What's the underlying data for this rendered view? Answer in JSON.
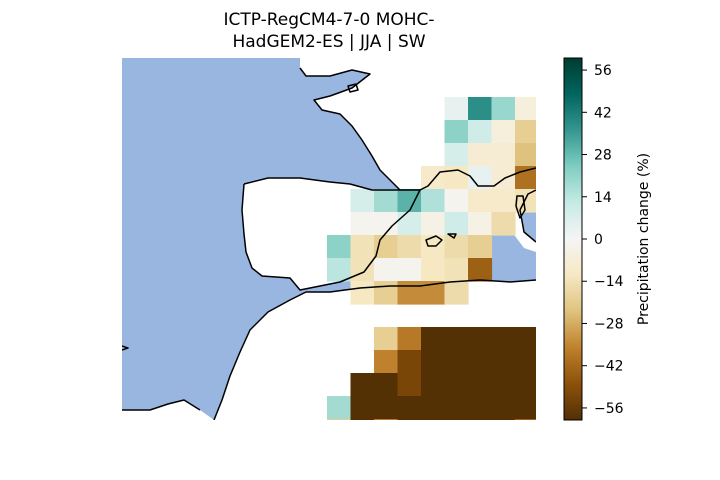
{
  "title": {
    "line1": "ICTP-RegCM4-7-0 MOHC-",
    "line2": "HadGEM2-ES | JJA | SW"
  },
  "colorbar": {
    "label": "Precipitation change (%)",
    "ticks": [
      "56",
      "42",
      "28",
      "14",
      "0",
      "−14",
      "−28",
      "−42",
      "−56"
    ],
    "tick_values": [
      56,
      42,
      28,
      14,
      0,
      -14,
      -28,
      -42,
      -56
    ],
    "range": [
      -60,
      60
    ],
    "colormap": "BrBG"
  },
  "colors": {
    "ocean": "#99b6e1",
    "coastline": "#000000",
    "land_no_data": "#ffffff"
  },
  "chart_data": {
    "type": "heatmap",
    "title": "ICTP-RegCM4-7-0 MOHC-HadGEM2-ES | JJA | SW",
    "colorbar_label": "Precipitation change (%)",
    "value_range": [
      -60,
      60
    ],
    "grid_note": "values in % precipitation change; rows north to south, columns west to east; null = no land cell",
    "values": [
      [
        null,
        null,
        null,
        null,
        null,
        null,
        null,
        null,
        null,
        null,
        null,
        null,
        null,
        null,
        -8,
        6,
        null,
        null
      ],
      [
        null,
        null,
        null,
        null,
        null,
        null,
        null,
        null,
        null,
        4,
        38,
        20,
        -6,
        -6,
        null,
        null,
        null,
        null
      ],
      [
        null,
        null,
        null,
        null,
        null,
        null,
        null,
        null,
        null,
        22,
        10,
        -6,
        -20,
        -14,
        null,
        null,
        null,
        null
      ],
      [
        null,
        null,
        null,
        null,
        null,
        null,
        null,
        null,
        null,
        8,
        -8,
        -8,
        -24,
        -8,
        null,
        null,
        null,
        null
      ],
      [
        null,
        null,
        null,
        null,
        null,
        null,
        null,
        null,
        -10,
        -12,
        4,
        -8,
        -40,
        -4,
        null,
        null,
        null,
        null
      ],
      [
        null,
        null,
        null,
        null,
        null,
        8,
        18,
        30,
        16,
        -2,
        -10,
        -10,
        -14,
        null,
        null,
        null,
        null,
        null
      ],
      [
        null,
        null,
        null,
        null,
        null,
        -2,
        -2,
        8,
        -4,
        10,
        -4,
        -16,
        null,
        null,
        null,
        null,
        null,
        null
      ],
      [
        null,
        null,
        null,
        null,
        22,
        -14,
        -20,
        -16,
        -12,
        -16,
        -20,
        null,
        null,
        null,
        null,
        null,
        null,
        null
      ],
      [
        null,
        null,
        null,
        null,
        14,
        -14,
        -2,
        -2,
        -12,
        -14,
        -44,
        null,
        null,
        null,
        null,
        null,
        null,
        null
      ],
      [
        null,
        null,
        null,
        null,
        null,
        -12,
        -20,
        -34,
        -34,
        -16,
        null,
        null,
        null,
        null,
        null,
        null,
        null,
        null
      ],
      [
        null,
        null,
        null,
        null,
        null,
        null,
        null,
        null,
        null,
        null,
        null,
        null,
        null,
        null,
        null,
        null,
        null,
        null
      ],
      [
        null,
        null,
        null,
        null,
        null,
        null,
        -20,
        -38,
        -60,
        -60,
        -60,
        -60,
        -60,
        -60,
        -48,
        -24,
        null,
        null
      ],
      [
        null,
        null,
        null,
        null,
        null,
        null,
        -36,
        -52,
        -60,
        -60,
        -60,
        -60,
        -60,
        -60,
        -28,
        -8,
        null,
        null
      ],
      [
        null,
        null,
        null,
        null,
        null,
        -60,
        -60,
        -52,
        -60,
        -60,
        -60,
        -60,
        -60,
        -60,
        -60,
        -44,
        null,
        null
      ],
      [
        null,
        null,
        null,
        null,
        18,
        -60,
        -60,
        -60,
        -60,
        -60,
        -60,
        -60,
        -60,
        null,
        null,
        null,
        null,
        null
      ],
      [
        null,
        null,
        null,
        null,
        -20,
        -60,
        -38,
        -60,
        -60,
        -60,
        -60,
        -60,
        -44,
        null,
        null,
        null,
        null,
        null
      ],
      [
        null,
        null,
        null,
        null,
        -56,
        -60,
        -60,
        null,
        null,
        null,
        null,
        null,
        null,
        null,
        null,
        null,
        null,
        null
      ]
    ]
  }
}
